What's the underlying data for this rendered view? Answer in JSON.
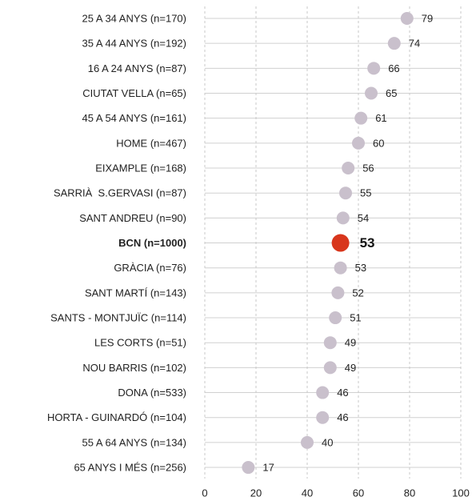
{
  "chart_data": {
    "type": "dot",
    "categories": [
      "25 A 34 ANYS (n=170)",
      "35 A 44 ANYS (n=192)",
      "16 A 24 ANYS (n=87)",
      "CIUTAT VELLA (n=65)",
      "45 A 54 ANYS (n=161)",
      "HOME (n=467)",
      "EIXAMPLE (n=168)",
      "SARRIÀ  S.GERVASI (n=87)",
      "SANT ANDREU (n=90)",
      "BCN (n=1000)",
      "GRÀCIA (n=76)",
      "SANT MARTÍ (n=143)",
      "SANTS - MONTJUÏC (n=114)",
      "LES CORTS (n=51)",
      "NOU BARRIS (n=102)",
      "DONA (n=533)",
      "HORTA - GUINARDÓ (n=104)",
      "55 A 64 ANYS (n=134)",
      "65 ANYS I MÉS (n=256)"
    ],
    "values": [
      79,
      74,
      66,
      65,
      61,
      60,
      56,
      55,
      54,
      53,
      53,
      52,
      51,
      49,
      49,
      46,
      46,
      40,
      17
    ],
    "color": "#c9c0cc",
    "highlight": "BCN (n=1000)",
    "highlight_color": "#d8361c",
    "xlim": [
      0,
      100
    ],
    "xticks": [
      0,
      20,
      40,
      60,
      80,
      100
    ],
    "grid": true
  }
}
